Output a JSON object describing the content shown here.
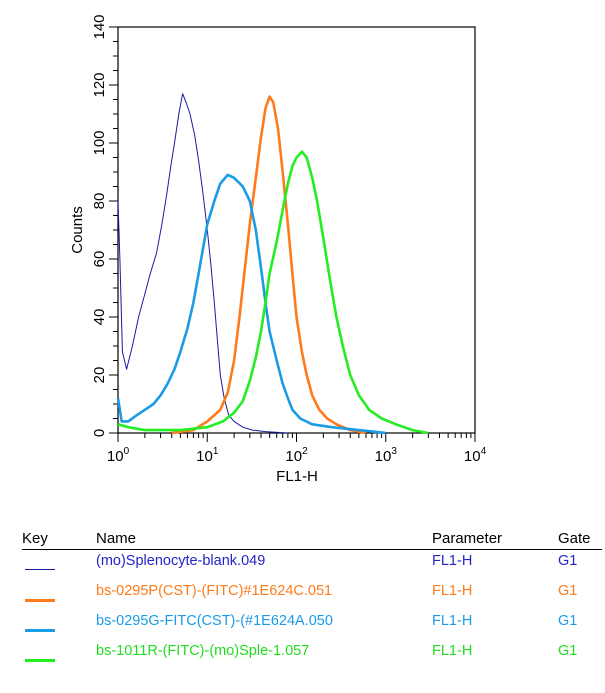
{
  "chart_data": {
    "type": "line",
    "xlabel": "FL1-H",
    "ylabel": "Counts",
    "xscale": "log",
    "xlim": [
      1,
      10000
    ],
    "ylim": [
      0,
      140
    ],
    "x_tick_labels": [
      {
        "base": "10",
        "exp": "0"
      },
      {
        "base": "10",
        "exp": "1"
      },
      {
        "base": "10",
        "exp": "2"
      },
      {
        "base": "10",
        "exp": "3"
      },
      {
        "base": "10",
        "exp": "4"
      }
    ],
    "y_tick_labels": [
      "0",
      "20",
      "40",
      "60",
      "80",
      "100",
      "120",
      "140"
    ],
    "series": [
      {
        "name": "(mo)Splenocyte-blank.049",
        "color": "#1a1aa0",
        "stroke": 1,
        "points": [
          [
            1.0,
            80
          ],
          [
            1.05,
            60
          ],
          [
            1.12,
            28
          ],
          [
            1.25,
            22
          ],
          [
            1.45,
            30
          ],
          [
            1.7,
            40
          ],
          [
            2.0,
            48
          ],
          [
            2.3,
            55
          ],
          [
            2.7,
            62
          ],
          [
            3.1,
            72
          ],
          [
            3.5,
            82
          ],
          [
            3.9,
            92
          ],
          [
            4.3,
            100
          ],
          [
            4.8,
            110
          ],
          [
            5.3,
            117
          ],
          [
            5.8,
            114
          ],
          [
            6.4,
            110
          ],
          [
            7.2,
            103
          ],
          [
            8.0,
            94
          ],
          [
            9.0,
            82
          ],
          [
            10.0,
            70
          ],
          [
            11.0,
            58
          ],
          [
            12.0,
            45
          ],
          [
            13.0,
            32
          ],
          [
            14.0,
            20
          ],
          [
            15.5,
            12
          ],
          [
            17.5,
            6
          ],
          [
            20.0,
            4
          ],
          [
            25.0,
            2
          ],
          [
            32.0,
            1
          ],
          [
            45.0,
            0.5
          ],
          [
            80.0,
            0
          ]
        ]
      },
      {
        "name": "bs-0295P(CST)-(FITC)#1E624C.051",
        "color": "#ff7a1a",
        "stroke": 2.6,
        "points": [
          [
            4.0,
            0
          ],
          [
            7.0,
            1
          ],
          [
            10.0,
            4
          ],
          [
            14.0,
            8
          ],
          [
            17.0,
            14
          ],
          [
            20.0,
            25
          ],
          [
            23.0,
            40
          ],
          [
            26.0,
            55
          ],
          [
            30.0,
            72
          ],
          [
            35.0,
            88
          ],
          [
            40.0,
            102
          ],
          [
            45.0,
            112
          ],
          [
            50.0,
            116
          ],
          [
            55.0,
            114
          ],
          [
            62.0,
            105
          ],
          [
            70.0,
            90
          ],
          [
            80.0,
            72
          ],
          [
            90.0,
            55
          ],
          [
            100.0,
            40
          ],
          [
            115.0,
            28
          ],
          [
            130.0,
            20
          ],
          [
            150.0,
            13
          ],
          [
            180.0,
            8
          ],
          [
            220.0,
            5
          ],
          [
            280.0,
            3
          ],
          [
            400.0,
            1
          ],
          [
            600.0,
            0
          ]
        ]
      },
      {
        "name": "bs-0295G-FITC(CST)-(#1E624A.050",
        "color": "#1a9be6",
        "stroke": 2.6,
        "points": [
          [
            1.0,
            12
          ],
          [
            1.1,
            4
          ],
          [
            1.3,
            4
          ],
          [
            1.6,
            6
          ],
          [
            2.0,
            8
          ],
          [
            2.5,
            10
          ],
          [
            3.0,
            13
          ],
          [
            3.6,
            17
          ],
          [
            4.3,
            22
          ],
          [
            5.0,
            28
          ],
          [
            6.0,
            36
          ],
          [
            7.0,
            45
          ],
          [
            8.0,
            55
          ],
          [
            9.0,
            64
          ],
          [
            10.0,
            72
          ],
          [
            12.0,
            80
          ],
          [
            14.0,
            86
          ],
          [
            17.0,
            89
          ],
          [
            20.0,
            88
          ],
          [
            25.0,
            85
          ],
          [
            30.0,
            80
          ],
          [
            35.0,
            70
          ],
          [
            40.0,
            57
          ],
          [
            45.0,
            45
          ],
          [
            50.0,
            35
          ],
          [
            60.0,
            25
          ],
          [
            70.0,
            17
          ],
          [
            80.0,
            12
          ],
          [
            90.0,
            8
          ],
          [
            110.0,
            5
          ],
          [
            150.0,
            3
          ],
          [
            250.0,
            2
          ],
          [
            500.0,
            1
          ],
          [
            1000.0,
            0
          ]
        ]
      },
      {
        "name": "bs-1011R-(FITC)-(mo)Sple-1.057",
        "color": "#22ee22",
        "stroke": 2.6,
        "points": [
          [
            1.0,
            3
          ],
          [
            1.3,
            2
          ],
          [
            2.0,
            1
          ],
          [
            5.0,
            1
          ],
          [
            10.0,
            2
          ],
          [
            15.0,
            4
          ],
          [
            20.0,
            7
          ],
          [
            25.0,
            11
          ],
          [
            30.0,
            18
          ],
          [
            35.0,
            26
          ],
          [
            40.0,
            35
          ],
          [
            45.0,
            45
          ],
          [
            50.0,
            55
          ],
          [
            60.0,
            66
          ],
          [
            70.0,
            77
          ],
          [
            80.0,
            86
          ],
          [
            90.0,
            92
          ],
          [
            100.0,
            95
          ],
          [
            115.0,
            97
          ],
          [
            130.0,
            95
          ],
          [
            150.0,
            88
          ],
          [
            170.0,
            80
          ],
          [
            200.0,
            67
          ],
          [
            240.0,
            52
          ],
          [
            280.0,
            40
          ],
          [
            330.0,
            30
          ],
          [
            400.0,
            20
          ],
          [
            500.0,
            13
          ],
          [
            650.0,
            8
          ],
          [
            900.0,
            5
          ],
          [
            1300.0,
            3
          ],
          [
            2000.0,
            1
          ],
          [
            3000.0,
            0
          ]
        ]
      }
    ]
  },
  "key": {
    "headers": {
      "key": "Key",
      "name": "Name",
      "parameter": "Parameter",
      "gate": "Gate"
    },
    "rows": [
      {
        "name": "(mo)Splenocyte-blank.049",
        "parameter": "FL1-H",
        "gate": "G1",
        "color": "#1a1aa0",
        "text_color": "#2424c8",
        "stroke": 1
      },
      {
        "name": "bs-0295P(CST)-(FITC)#1E624C.051",
        "parameter": "FL1-H",
        "gate": "G1",
        "color": "#ff7a1a",
        "text_color": "#ff7a1a",
        "stroke": 3
      },
      {
        "name": "bs-0295G-FITC(CST)-(#1E624A.050",
        "parameter": "FL1-H",
        "gate": "G1",
        "color": "#1a9be6",
        "text_color": "#1a9be6",
        "stroke": 3
      },
      {
        "name": "bs-1011R-(FITC)-(mo)Sple-1.057",
        "parameter": "FL1-H",
        "gate": "G1",
        "color": "#22ee22",
        "text_color": "#22dd22",
        "stroke": 3
      }
    ]
  }
}
